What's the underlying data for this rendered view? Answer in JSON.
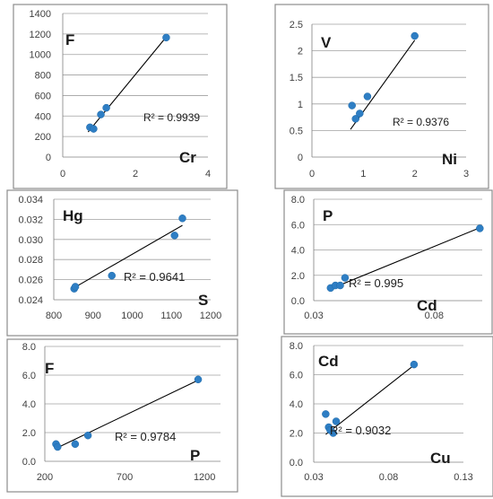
{
  "colors": {
    "points": "#2e7ec4",
    "trendline": "#000000",
    "grid": "#a0a0a0",
    "frame": "#8c8c8c"
  },
  "chart_data": [
    {
      "type": "scatter",
      "xlabel": "Cr",
      "ylabel": "F",
      "xlim": [
        0,
        4
      ],
      "ylim": [
        0,
        1400
      ],
      "xticks": [
        "0",
        "2",
        "4"
      ],
      "yticks": [
        "0",
        "200",
        "400",
        "600",
        "800",
        "1000",
        "1200",
        "1400"
      ],
      "grid": "horizontal",
      "r2_label": "R² = 0.9939",
      "points": [
        [
          0.75,
          290
        ],
        [
          0.85,
          275
        ],
        [
          1.05,
          415
        ],
        [
          1.2,
          480
        ],
        [
          2.85,
          1165
        ]
      ],
      "trendline": [
        [
          0.7,
          245
        ],
        [
          2.85,
          1170
        ]
      ]
    },
    {
      "type": "scatter",
      "xlabel": "Ni",
      "ylabel": "V",
      "xlim": [
        0,
        3
      ],
      "ylim": [
        0,
        2.5
      ],
      "xticks": [
        "0",
        "1",
        "2",
        "3"
      ],
      "yticks": [
        "0",
        "0.5",
        "1",
        "1.5",
        "2",
        "2.5"
      ],
      "grid": "horizontal",
      "r2_label": "R² = 0.9376",
      "points": [
        [
          0.78,
          0.97
        ],
        [
          0.85,
          0.72
        ],
        [
          0.93,
          0.82
        ],
        [
          1.08,
          1.14
        ],
        [
          2.0,
          2.28
        ]
      ],
      "trendline": [
        [
          0.75,
          0.52
        ],
        [
          2.0,
          2.2
        ]
      ]
    },
    {
      "type": "scatter",
      "xlabel": "S",
      "ylabel": "Hg",
      "xlim": [
        800,
        1200
      ],
      "ylim": [
        0.024,
        0.034
      ],
      "xticks": [
        "800",
        "900",
        "1000",
        "1100",
        "1200"
      ],
      "yticks": [
        "0.024",
        "0.026",
        "0.028",
        "0.030",
        "0.032",
        "0.034"
      ],
      "grid": "horizontal",
      "r2_label": "R² = 0.9641",
      "points": [
        [
          852,
          0.0251
        ],
        [
          855,
          0.0253
        ],
        [
          948,
          0.0264
        ],
        [
          1108,
          0.0304
        ],
        [
          1128,
          0.0321
        ]
      ],
      "trendline": [
        [
          852,
          0.0252
        ],
        [
          1128,
          0.0314
        ]
      ]
    },
    {
      "type": "scatter",
      "xlabel": "Cd",
      "ylabel": "P",
      "xlim": [
        0.03,
        0.1
      ],
      "ylim": [
        0,
        8
      ],
      "xticks": [
        "0.03",
        "0.08"
      ],
      "yticks": [
        "0.0",
        "2.0",
        "4.0",
        "6.0",
        "8.0"
      ],
      "grid": "horizontal",
      "r2_label": "R² = 0.995",
      "points": [
        [
          0.037,
          1.0
        ],
        [
          0.039,
          1.2
        ],
        [
          0.041,
          1.2
        ],
        [
          0.043,
          1.8
        ],
        [
          0.099,
          5.7
        ]
      ],
      "trendline": [
        [
          0.036,
          0.85
        ],
        [
          0.099,
          5.75
        ]
      ]
    },
    {
      "type": "scatter",
      "xlabel": "P",
      "ylabel": "F",
      "xlim": [
        200,
        1300
      ],
      "ylim": [
        0,
        8
      ],
      "xticks": [
        "200",
        "700",
        "1200"
      ],
      "yticks": [
        "0.0",
        "2.0",
        "4.0",
        "6.0",
        "8.0"
      ],
      "grid": "horizontal",
      "r2_label": "R² = 0.9784",
      "points": [
        [
          270,
          1.2
        ],
        [
          280,
          1.0
        ],
        [
          390,
          1.2
        ],
        [
          470,
          1.8
        ],
        [
          1160,
          5.7
        ]
      ],
      "trendline": [
        [
          270,
          0.9
        ],
        [
          1160,
          5.65
        ]
      ]
    },
    {
      "type": "scatter",
      "xlabel": "Cu",
      "ylabel": "Cd",
      "xlim": [
        0.03,
        0.13
      ],
      "ylim": [
        0,
        8
      ],
      "xticks": [
        "0.03",
        "0.08",
        "0.13"
      ],
      "yticks": [
        "0.0",
        "2.0",
        "4.0",
        "6.0",
        "8.0"
      ],
      "grid": "horizontal",
      "r2_label": "R² = 0.9032",
      "points": [
        [
          0.038,
          3.3
        ],
        [
          0.04,
          2.4
        ],
        [
          0.041,
          2.2
        ],
        [
          0.043,
          2.0
        ],
        [
          0.045,
          2.8
        ],
        [
          0.097,
          6.7
        ]
      ],
      "trendline": [
        [
          0.038,
          1.9
        ],
        [
          0.097,
          6.65
        ]
      ]
    }
  ]
}
